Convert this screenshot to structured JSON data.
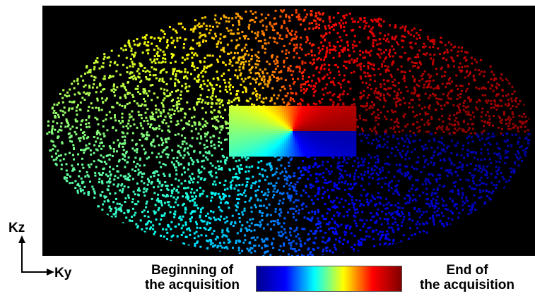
{
  "axes": {
    "vertical_label": "Kz",
    "horizontal_label": "Ky"
  },
  "legend": {
    "start_label_line1": "Beginning of",
    "start_label_line2": "the acquisition",
    "end_label_line1": "End of",
    "end_label_line2": "the acquisition",
    "colormap": "jet"
  },
  "colors": {
    "background": "#000000",
    "colormap_stops": [
      "#00008f",
      "#0000ff",
      "#00ffff",
      "#ffff00",
      "#ff0000",
      "#800000"
    ]
  }
}
